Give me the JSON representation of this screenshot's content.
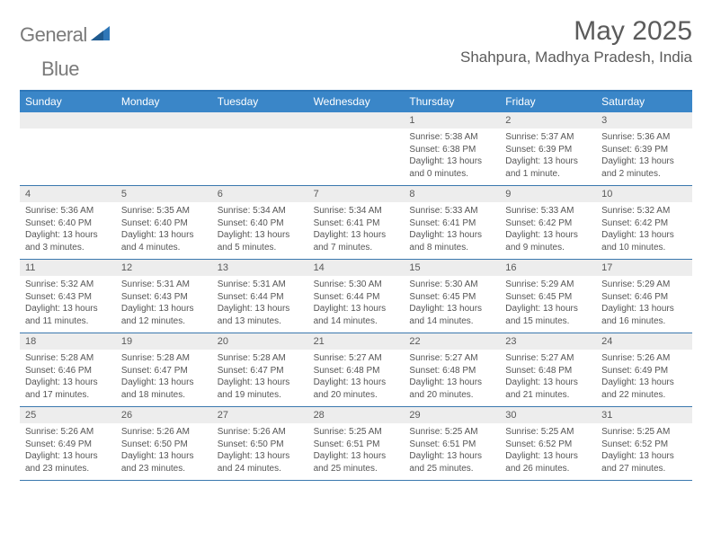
{
  "brand": {
    "part1": "General",
    "part2": "Blue"
  },
  "title": "May 2025",
  "location": "Shahpura, Madhya Pradesh, India",
  "colors": {
    "header_bg": "#3a86c8",
    "border_top": "#2f77b8",
    "row_border": "#3a78ae",
    "daynum_bg": "#ededed",
    "text_gray": "#5b5b5b"
  },
  "weekdays": [
    "Sunday",
    "Monday",
    "Tuesday",
    "Wednesday",
    "Thursday",
    "Friday",
    "Saturday"
  ],
  "weeks": [
    [
      {
        "n": "",
        "sr": "",
        "ss": "",
        "dl": ""
      },
      {
        "n": "",
        "sr": "",
        "ss": "",
        "dl": ""
      },
      {
        "n": "",
        "sr": "",
        "ss": "",
        "dl": ""
      },
      {
        "n": "",
        "sr": "",
        "ss": "",
        "dl": ""
      },
      {
        "n": "1",
        "sr": "Sunrise: 5:38 AM",
        "ss": "Sunset: 6:38 PM",
        "dl": "Daylight: 13 hours and 0 minutes."
      },
      {
        "n": "2",
        "sr": "Sunrise: 5:37 AM",
        "ss": "Sunset: 6:39 PM",
        "dl": "Daylight: 13 hours and 1 minute."
      },
      {
        "n": "3",
        "sr": "Sunrise: 5:36 AM",
        "ss": "Sunset: 6:39 PM",
        "dl": "Daylight: 13 hours and 2 minutes."
      }
    ],
    [
      {
        "n": "4",
        "sr": "Sunrise: 5:36 AM",
        "ss": "Sunset: 6:40 PM",
        "dl": "Daylight: 13 hours and 3 minutes."
      },
      {
        "n": "5",
        "sr": "Sunrise: 5:35 AM",
        "ss": "Sunset: 6:40 PM",
        "dl": "Daylight: 13 hours and 4 minutes."
      },
      {
        "n": "6",
        "sr": "Sunrise: 5:34 AM",
        "ss": "Sunset: 6:40 PM",
        "dl": "Daylight: 13 hours and 5 minutes."
      },
      {
        "n": "7",
        "sr": "Sunrise: 5:34 AM",
        "ss": "Sunset: 6:41 PM",
        "dl": "Daylight: 13 hours and 7 minutes."
      },
      {
        "n": "8",
        "sr": "Sunrise: 5:33 AM",
        "ss": "Sunset: 6:41 PM",
        "dl": "Daylight: 13 hours and 8 minutes."
      },
      {
        "n": "9",
        "sr": "Sunrise: 5:33 AM",
        "ss": "Sunset: 6:42 PM",
        "dl": "Daylight: 13 hours and 9 minutes."
      },
      {
        "n": "10",
        "sr": "Sunrise: 5:32 AM",
        "ss": "Sunset: 6:42 PM",
        "dl": "Daylight: 13 hours and 10 minutes."
      }
    ],
    [
      {
        "n": "11",
        "sr": "Sunrise: 5:32 AM",
        "ss": "Sunset: 6:43 PM",
        "dl": "Daylight: 13 hours and 11 minutes."
      },
      {
        "n": "12",
        "sr": "Sunrise: 5:31 AM",
        "ss": "Sunset: 6:43 PM",
        "dl": "Daylight: 13 hours and 12 minutes."
      },
      {
        "n": "13",
        "sr": "Sunrise: 5:31 AM",
        "ss": "Sunset: 6:44 PM",
        "dl": "Daylight: 13 hours and 13 minutes."
      },
      {
        "n": "14",
        "sr": "Sunrise: 5:30 AM",
        "ss": "Sunset: 6:44 PM",
        "dl": "Daylight: 13 hours and 14 minutes."
      },
      {
        "n": "15",
        "sr": "Sunrise: 5:30 AM",
        "ss": "Sunset: 6:45 PM",
        "dl": "Daylight: 13 hours and 14 minutes."
      },
      {
        "n": "16",
        "sr": "Sunrise: 5:29 AM",
        "ss": "Sunset: 6:45 PM",
        "dl": "Daylight: 13 hours and 15 minutes."
      },
      {
        "n": "17",
        "sr": "Sunrise: 5:29 AM",
        "ss": "Sunset: 6:46 PM",
        "dl": "Daylight: 13 hours and 16 minutes."
      }
    ],
    [
      {
        "n": "18",
        "sr": "Sunrise: 5:28 AM",
        "ss": "Sunset: 6:46 PM",
        "dl": "Daylight: 13 hours and 17 minutes."
      },
      {
        "n": "19",
        "sr": "Sunrise: 5:28 AM",
        "ss": "Sunset: 6:47 PM",
        "dl": "Daylight: 13 hours and 18 minutes."
      },
      {
        "n": "20",
        "sr": "Sunrise: 5:28 AM",
        "ss": "Sunset: 6:47 PM",
        "dl": "Daylight: 13 hours and 19 minutes."
      },
      {
        "n": "21",
        "sr": "Sunrise: 5:27 AM",
        "ss": "Sunset: 6:48 PM",
        "dl": "Daylight: 13 hours and 20 minutes."
      },
      {
        "n": "22",
        "sr": "Sunrise: 5:27 AM",
        "ss": "Sunset: 6:48 PM",
        "dl": "Daylight: 13 hours and 20 minutes."
      },
      {
        "n": "23",
        "sr": "Sunrise: 5:27 AM",
        "ss": "Sunset: 6:48 PM",
        "dl": "Daylight: 13 hours and 21 minutes."
      },
      {
        "n": "24",
        "sr": "Sunrise: 5:26 AM",
        "ss": "Sunset: 6:49 PM",
        "dl": "Daylight: 13 hours and 22 minutes."
      }
    ],
    [
      {
        "n": "25",
        "sr": "Sunrise: 5:26 AM",
        "ss": "Sunset: 6:49 PM",
        "dl": "Daylight: 13 hours and 23 minutes."
      },
      {
        "n": "26",
        "sr": "Sunrise: 5:26 AM",
        "ss": "Sunset: 6:50 PM",
        "dl": "Daylight: 13 hours and 23 minutes."
      },
      {
        "n": "27",
        "sr": "Sunrise: 5:26 AM",
        "ss": "Sunset: 6:50 PM",
        "dl": "Daylight: 13 hours and 24 minutes."
      },
      {
        "n": "28",
        "sr": "Sunrise: 5:25 AM",
        "ss": "Sunset: 6:51 PM",
        "dl": "Daylight: 13 hours and 25 minutes."
      },
      {
        "n": "29",
        "sr": "Sunrise: 5:25 AM",
        "ss": "Sunset: 6:51 PM",
        "dl": "Daylight: 13 hours and 25 minutes."
      },
      {
        "n": "30",
        "sr": "Sunrise: 5:25 AM",
        "ss": "Sunset: 6:52 PM",
        "dl": "Daylight: 13 hours and 26 minutes."
      },
      {
        "n": "31",
        "sr": "Sunrise: 5:25 AM",
        "ss": "Sunset: 6:52 PM",
        "dl": "Daylight: 13 hours and 27 minutes."
      }
    ]
  ]
}
